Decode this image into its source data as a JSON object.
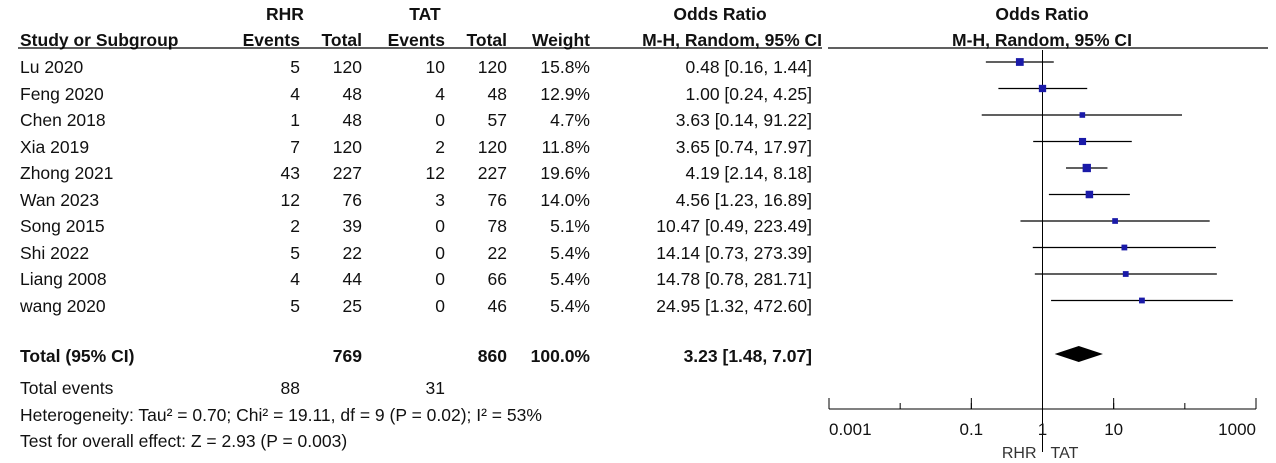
{
  "header": {
    "group1": "RHR",
    "group2": "TAT",
    "or_title": "Odds Ratio",
    "plot_title": "Odds Ratio",
    "col_study": "Study or Subgroup",
    "col_events1": "Events",
    "col_total1": "Total",
    "col_events2": "Events",
    "col_total2": "Total",
    "col_weight": "Weight",
    "col_method": "M-H, Random, 95% CI",
    "plot_method": "M-H, Random, 95% CI"
  },
  "rows": [
    {
      "study": "Lu 2020",
      "e1": "5",
      "t1": "120",
      "e2": "10",
      "t2": "120",
      "weight": "15.8%",
      "ci": "0.48 [0.16, 1.44]"
    },
    {
      "study": "Feng 2020",
      "e1": "4",
      "t1": "48",
      "e2": "4",
      "t2": "48",
      "weight": "12.9%",
      "ci": "1.00 [0.24, 4.25]"
    },
    {
      "study": "Chen 2018",
      "e1": "1",
      "t1": "48",
      "e2": "0",
      "t2": "57",
      "weight": "4.7%",
      "ci": "3.63 [0.14, 91.22]"
    },
    {
      "study": "Xia 2019",
      "e1": "7",
      "t1": "120",
      "e2": "2",
      "t2": "120",
      "weight": "11.8%",
      "ci": "3.65 [0.74, 17.97]"
    },
    {
      "study": "Zhong 2021",
      "e1": "43",
      "t1": "227",
      "e2": "12",
      "t2": "227",
      "weight": "19.6%",
      "ci": "4.19 [2.14, 8.18]"
    },
    {
      "study": "Wan 2023",
      "e1": "12",
      "t1": "76",
      "e2": "3",
      "t2": "76",
      "weight": "14.0%",
      "ci": "4.56 [1.23, 16.89]"
    },
    {
      "study": "Song 2015",
      "e1": "2",
      "t1": "39",
      "e2": "0",
      "t2": "78",
      "weight": "5.1%",
      "ci": "10.47 [0.49, 223.49]"
    },
    {
      "study": "Shi 2022",
      "e1": "5",
      "t1": "22",
      "e2": "0",
      "t2": "22",
      "weight": "5.4%",
      "ci": "14.14 [0.73, 273.39]"
    },
    {
      "study": "Liang 2008",
      "e1": "4",
      "t1": "44",
      "e2": "0",
      "t2": "66",
      "weight": "5.4%",
      "ci": "14.78 [0.78, 281.71]"
    },
    {
      "study": "wang 2020",
      "e1": "5",
      "t1": "25",
      "e2": "0",
      "t2": "46",
      "weight": "5.4%",
      "ci": "24.95 [1.32, 472.60]"
    }
  ],
  "total": {
    "label": "Total (95% CI)",
    "t1": "769",
    "t2": "860",
    "weight": "100.0%",
    "ci": "3.23 [1.48, 7.07]"
  },
  "total_events": {
    "label": "Total events",
    "e1": "88",
    "e2": "31"
  },
  "heterogeneity": "Heterogeneity: Tau² = 0.70; Chi² = 19.11, df = 9 (P = 0.02); I² = 53%",
  "overall_effect": "Test for overall effect: Z = 2.93 (P = 0.003)",
  "chart_data": {
    "type": "forest",
    "scale": "log",
    "xlim": [
      0.001,
      1000
    ],
    "ticks": [
      "0.001",
      "0.1",
      "1",
      "10",
      "1000"
    ],
    "tick_values": [
      0.001,
      0.1,
      1,
      10,
      1000
    ],
    "axis_left_label": "RHR",
    "axis_right_label": "TAT",
    "studies": [
      {
        "name": "Lu 2020",
        "or": 0.48,
        "lo": 0.16,
        "hi": 1.44,
        "weight": 15.8
      },
      {
        "name": "Feng 2020",
        "or": 1.0,
        "lo": 0.24,
        "hi": 4.25,
        "weight": 12.9
      },
      {
        "name": "Chen 2018",
        "or": 3.63,
        "lo": 0.14,
        "hi": 91.22,
        "weight": 4.7
      },
      {
        "name": "Xia 2019",
        "or": 3.65,
        "lo": 0.74,
        "hi": 17.97,
        "weight": 11.8
      },
      {
        "name": "Zhong 2021",
        "or": 4.19,
        "lo": 2.14,
        "hi": 8.18,
        "weight": 19.6
      },
      {
        "name": "Wan 2023",
        "or": 4.56,
        "lo": 1.23,
        "hi": 16.89,
        "weight": 14.0
      },
      {
        "name": "Song 2015",
        "or": 10.47,
        "lo": 0.49,
        "hi": 223.49,
        "weight": 5.1
      },
      {
        "name": "Shi 2022",
        "or": 14.14,
        "lo": 0.73,
        "hi": 273.39,
        "weight": 5.4
      },
      {
        "name": "Liang 2008",
        "or": 14.78,
        "lo": 0.78,
        "hi": 281.71,
        "weight": 5.4
      },
      {
        "name": "wang 2020",
        "or": 24.95,
        "lo": 1.32,
        "hi": 472.6,
        "weight": 5.4
      }
    ],
    "pooled": {
      "or": 3.23,
      "lo": 1.48,
      "hi": 7.07
    },
    "colors": {
      "marker": "#1a1aa8",
      "diamond": "#000000",
      "line": "#000000"
    }
  }
}
